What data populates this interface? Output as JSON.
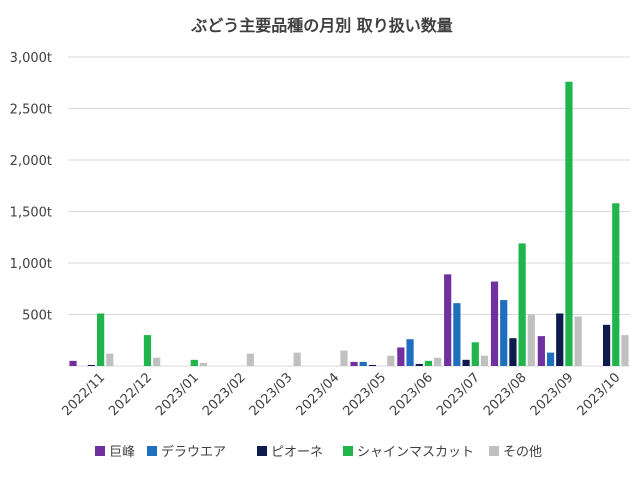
{
  "chart_data": {
    "type": "bar",
    "title": "ぶどう主要品種の月別 取り扱い数量",
    "categories": [
      "2022/11",
      "2022/12",
      "2023/01",
      "2023/02",
      "2023/03",
      "2023/04",
      "2023/05",
      "2023/06",
      "2023/07",
      "2023/08",
      "2023/09",
      "2023/10"
    ],
    "series": [
      {
        "name": "巨峰",
        "color": "#7030a0",
        "values": [
          50,
          0,
          0,
          0,
          0,
          0,
          40,
          180,
          890,
          820,
          290,
          0
        ]
      },
      {
        "name": "デラウエア",
        "color": "#1f6fbf",
        "values": [
          0,
          0,
          0,
          0,
          0,
          0,
          40,
          260,
          610,
          640,
          130,
          0
        ]
      },
      {
        "name": "ピオーネ",
        "color": "#0d1b4d",
        "values": [
          10,
          0,
          0,
          0,
          0,
          0,
          10,
          20,
          60,
          270,
          510,
          400
        ]
      },
      {
        "name": "シャインマスカット",
        "color": "#1fb54a",
        "values": [
          510,
          300,
          60,
          0,
          0,
          0,
          0,
          50,
          230,
          1190,
          2760,
          1580
        ]
      },
      {
        "name": "その他",
        "color": "#c0c0c0",
        "values": [
          120,
          80,
          30,
          120,
          130,
          150,
          100,
          80,
          100,
          500,
          480,
          300
        ]
      }
    ],
    "yticks": [
      "",
      "500t",
      "1,000t",
      "1,500t",
      "2,000t",
      "2,500t",
      "3,000t"
    ],
    "ylim": [
      0,
      3000
    ],
    "grid": true,
    "legend_position": "bottom"
  }
}
